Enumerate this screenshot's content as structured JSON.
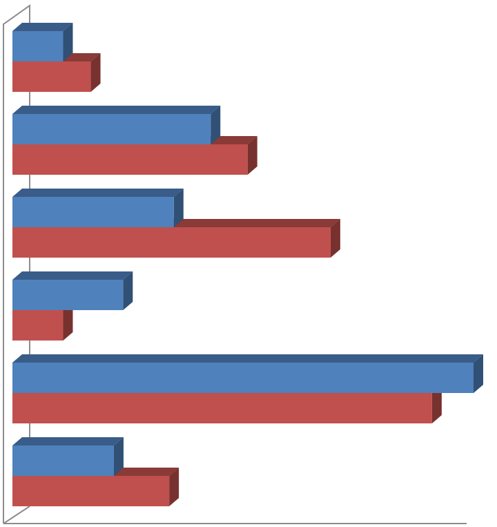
{
  "chart_data": {
    "type": "bar3d",
    "orientation": "horizontal",
    "categories": [
      null,
      null,
      null,
      null,
      null,
      null
    ],
    "series": [
      {
        "color": "#4f81bd",
        "values": [
          11,
          43,
          35,
          24,
          100,
          22
        ]
      },
      {
        "color": "#c0504d",
        "values": [
          17,
          51,
          69,
          11,
          91,
          34
        ]
      }
    ],
    "xlim": [
      0,
      100
    ]
  }
}
